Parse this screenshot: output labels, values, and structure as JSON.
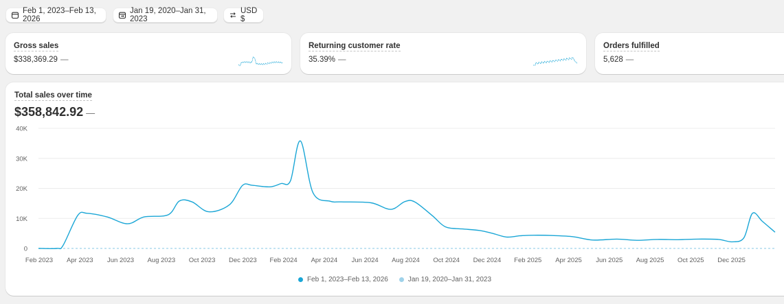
{
  "filters": {
    "date_range": "Feb 1, 2023–Feb 13, 2026",
    "compare_range": "Jan 19, 2020–Jan 31, 2023",
    "currency": "USD $"
  },
  "metrics": [
    {
      "title": "Gross sales",
      "value": "$338,369.29",
      "change": "—"
    },
    {
      "title": "Returning customer rate",
      "value": "35.39%",
      "change": "—"
    },
    {
      "title": "Orders fulfilled",
      "value": "5,628",
      "change": "—"
    }
  ],
  "sales_card": {
    "title": "Total sales over time",
    "value": "$358,842.92",
    "change": "—"
  },
  "colors": {
    "primary": "#1aa6d6",
    "comparison": "#9fd2ea",
    "grid": "#ececec",
    "axis_text": "#616161"
  },
  "chart_data": {
    "type": "line",
    "ylim": [
      0,
      40000
    ],
    "yticks": [
      0,
      10000,
      20000,
      30000,
      40000
    ],
    "ytick_labels": [
      "0",
      "10K",
      "20K",
      "30K",
      "40K"
    ],
    "xtick_labels": [
      "Feb 2023",
      "Apr 2023",
      "Jun 2023",
      "Aug 2023",
      "Oct 2023",
      "Dec 2023",
      "Feb 2024",
      "Apr 2024",
      "Jun 2024",
      "Aug 2024",
      "Oct 2024",
      "Dec 2024",
      "Feb 2025",
      "Apr 2025",
      "Jun 2025",
      "Aug 2025",
      "Oct 2025",
      "Dec 2025"
    ],
    "grid": true,
    "legend_position": "bottom",
    "series": [
      {
        "name": "Feb 1, 2023–Feb 13, 2026",
        "x": [
          "2023-02-01",
          "2023-03-01",
          "2023-03-10",
          "2023-04-01",
          "2023-04-15",
          "2023-05-15",
          "2023-06-15",
          "2023-07-10",
          "2023-08-15",
          "2023-09-01",
          "2023-09-20",
          "2023-10-15",
          "2023-11-15",
          "2023-12-05",
          "2023-12-20",
          "2024-01-15",
          "2024-02-01",
          "2024-02-15",
          "2024-03-01",
          "2024-03-20",
          "2024-04-15",
          "2024-05-01",
          "2024-06-15",
          "2024-07-15",
          "2024-08-05",
          "2024-08-20",
          "2024-09-15",
          "2024-10-05",
          "2024-10-30",
          "2024-11-25",
          "2024-12-15",
          "2025-01-05",
          "2025-01-25",
          "2025-02-15",
          "2025-03-15",
          "2025-04-15",
          "2025-05-15",
          "2025-06-20",
          "2025-07-20",
          "2025-08-20",
          "2025-09-20",
          "2025-10-20",
          "2025-11-20",
          "2025-12-10",
          "2025-12-28",
          "2026-01-10",
          "2026-01-25",
          "2026-02-13"
        ],
        "y": [
          0,
          0,
          1000,
          11000,
          11700,
          10500,
          8200,
          10500,
          11200,
          15800,
          15500,
          12200,
          14500,
          21000,
          21000,
          20500,
          21600,
          22500,
          35800,
          18500,
          15700,
          15500,
          15200,
          13000,
          15600,
          15500,
          11000,
          7200,
          6500,
          6000,
          5000,
          3800,
          4200,
          4400,
          4300,
          3900,
          2800,
          3100,
          2700,
          3000,
          2900,
          3100,
          3000,
          2200,
          3500,
          11700,
          9000,
          5400
        ]
      },
      {
        "name": "Jan 19, 2020–Jan 31, 2023",
        "x": [
          "2023-02-01",
          "2026-02-13"
        ],
        "y": [
          0,
          0
        ]
      }
    ]
  }
}
